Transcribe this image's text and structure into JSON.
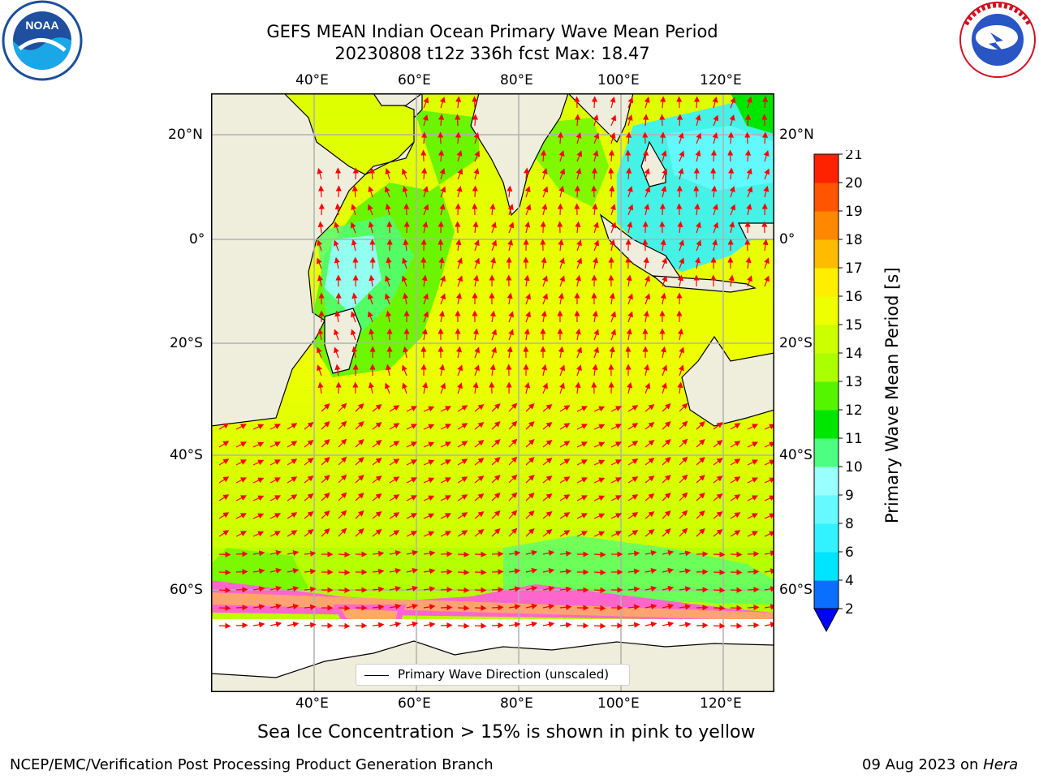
{
  "header": {
    "title_line1": "GEFS MEAN Indian Ocean Primary Wave Mean Period",
    "title_line2": "20230808 t12z 336h fcst   Max: 18.47"
  },
  "logos": {
    "noaa": {
      "text": "NOAA",
      "ring_text": "NATIONAL OCEANIC AND ATMOSPHERIC ADMINISTRATION · U.S. DEPARTMENT OF COMMERCE"
    },
    "nws": {
      "ring_text": "NATIONAL WEATHER SERVICE"
    }
  },
  "map": {
    "lon_labels": [
      "40°E",
      "60°E",
      "80°E",
      "100°E",
      "120°E"
    ],
    "lat_labels": [
      "20°N",
      "0°",
      "20°S",
      "40°S",
      "60°S"
    ],
    "legend_label": "Primary Wave Direction (unscaled)",
    "extent": {
      "lon_min": 20,
      "lon_max": 130,
      "lat_min": -75,
      "lat_max": 28
    }
  },
  "colorbar": {
    "label": "Primary Wave Mean Period [s]",
    "ticks": [
      "2",
      "4",
      "6",
      "8",
      "9",
      "10",
      "11",
      "12",
      "13",
      "14",
      "15",
      "16",
      "17",
      "18",
      "19",
      "20",
      "21"
    ],
    "colors": [
      "#0a6fff",
      "#00e5ff",
      "#33f2ff",
      "#66f9ff",
      "#99ffff",
      "#4dff80",
      "#00e600",
      "#55f500",
      "#aaff00",
      "#ccff00",
      "#eeff00",
      "#ffee00",
      "#ffbb00",
      "#ff8800",
      "#ff5500",
      "#ff2200"
    ],
    "extend_color": "#0000ff"
  },
  "notes": {
    "sea_ice": "Sea Ice Concentration > 15% is shown in pink to yellow",
    "producer": "NCEP/EMC/Verification Post Processing Product Generation Branch",
    "date_prefix": "09 Aug 2023 on ",
    "host": "Hera"
  },
  "colors": {
    "land": "#efeedd",
    "arrows": "#ff0000",
    "grid": "#b0b0b0",
    "ice_free_south": "#ffffff"
  }
}
